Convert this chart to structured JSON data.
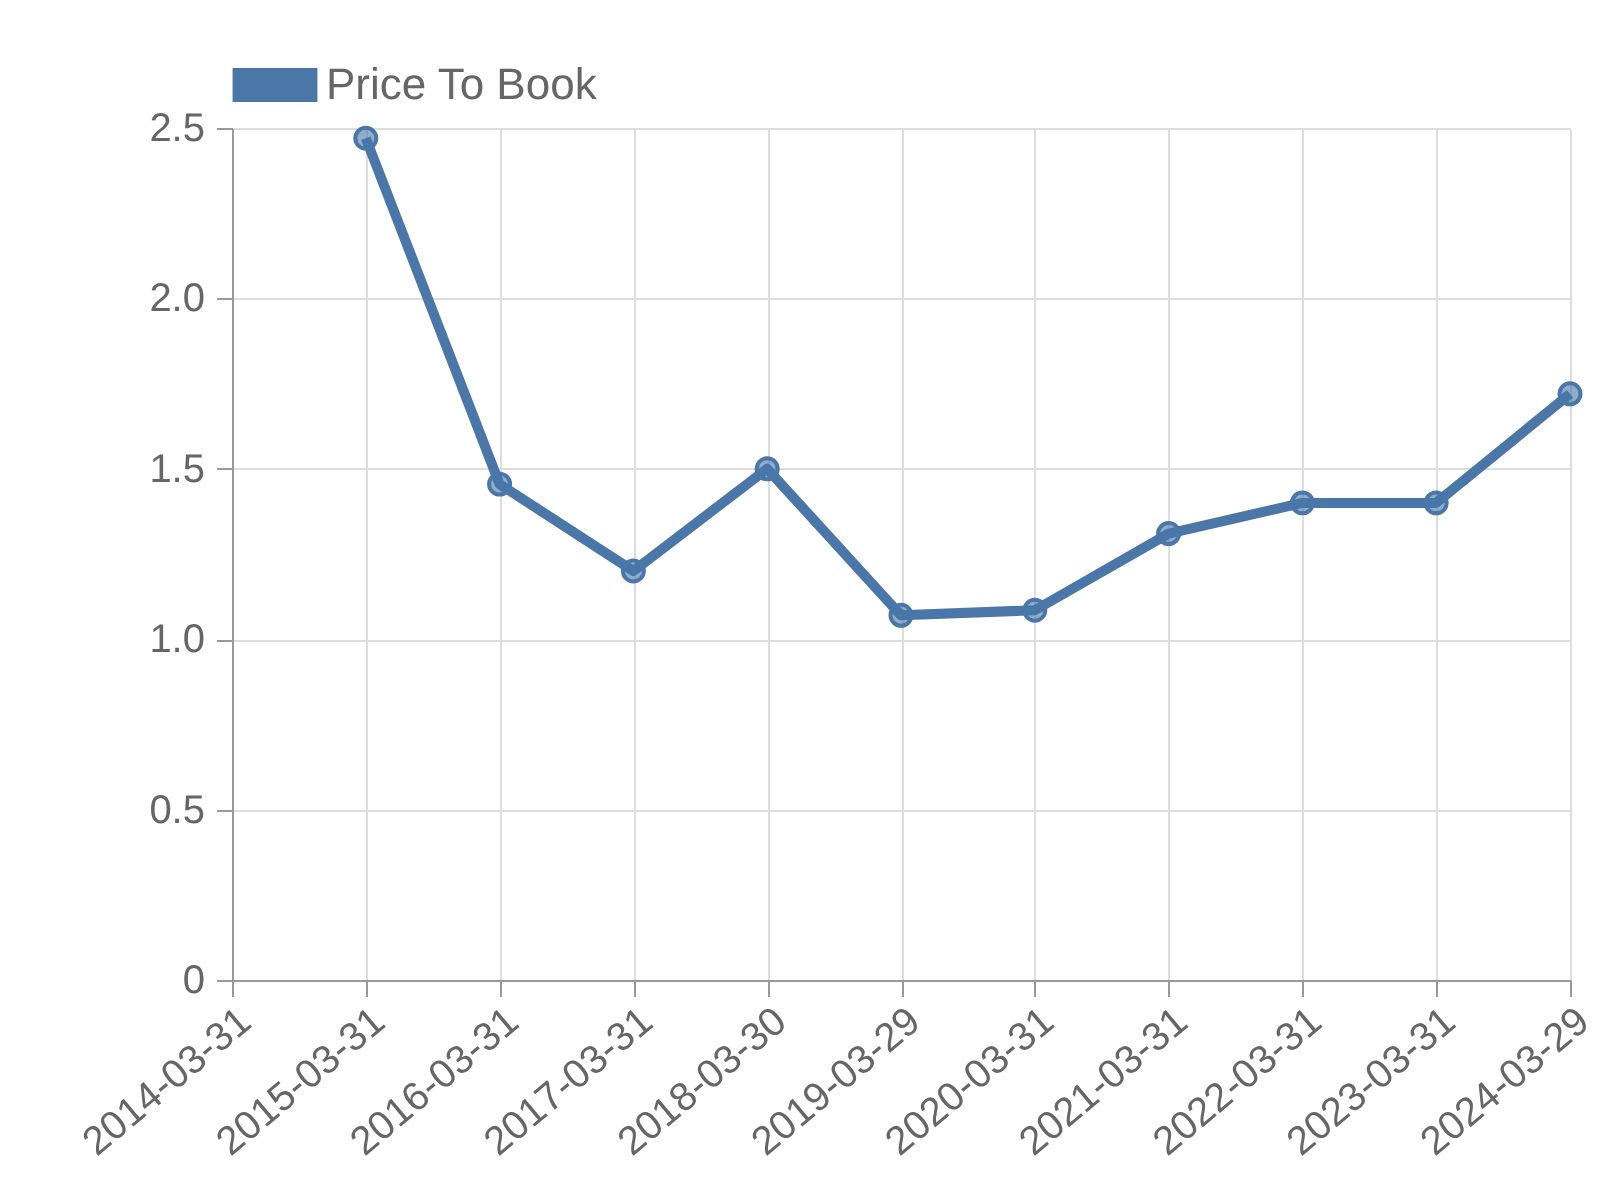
{
  "chart_data": {
    "type": "line",
    "categories": [
      "2014-03-31",
      "2015-03-31",
      "2016-03-31",
      "2017-03-31",
      "2018-03-30",
      "2019-03-29",
      "2020-03-31",
      "2021-03-31",
      "2022-03-31",
      "2023-03-31",
      "2024-03-29"
    ],
    "series": [
      {
        "name": "Price To Book",
        "color": "#4a76a8",
        "values": [
          null,
          2.47,
          1.455,
          1.2,
          1.5,
          1.07,
          1.085,
          1.31,
          1.4,
          1.4,
          1.72
        ]
      }
    ],
    "ylim": [
      0,
      2.5
    ],
    "yticks": [
      0,
      0.5,
      {
        "value": 1,
        "label": "1.0"
      },
      {
        "value": 1.5,
        "label": "1.5"
      },
      {
        "value": 2,
        "label": "2.0"
      },
      {
        "value": 2.5,
        "label": "2.5"
      }
    ],
    "grid": true,
    "legend": "top",
    "marker": "circle",
    "line_style": "solid"
  }
}
